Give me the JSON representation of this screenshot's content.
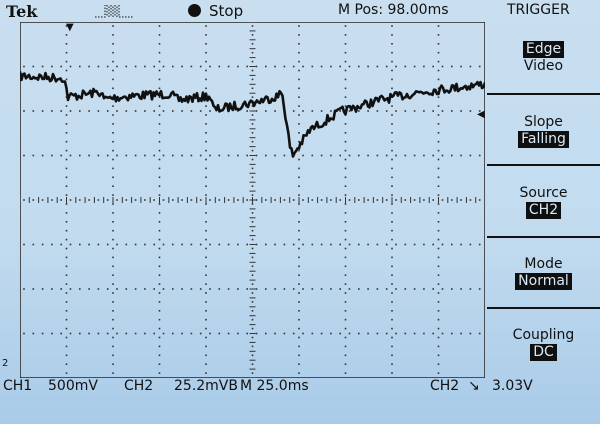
{
  "header": {
    "brand": "Tek",
    "run_state": "Stop",
    "position": "M Pos: 98.00ms",
    "trigger_title": "TRIGGER"
  },
  "menu": {
    "items": [
      {
        "lines": [
          "Edge",
          "Video"
        ],
        "highlight": [
          true,
          false
        ]
      },
      {
        "lines": [
          "Slope",
          "Falling"
        ],
        "highlight": [
          false,
          true
        ]
      },
      {
        "lines": [
          "Source",
          "CH2"
        ],
        "highlight": [
          false,
          true
        ]
      },
      {
        "lines": [
          "Mode",
          "Normal"
        ],
        "highlight": [
          false,
          true
        ]
      },
      {
        "lines": [
          "Coupling",
          "DC"
        ],
        "highlight": [
          false,
          true
        ]
      }
    ]
  },
  "status": {
    "ch1": "CH1",
    "ch1_scale": "500mV",
    "ch2": "CH2",
    "ch2_scale": "25.2mVB",
    "timebase": "M 25.0ms",
    "trig_source": "CH2",
    "trig_slope_symbol": "↘",
    "trig_level": "3.03V"
  },
  "markers": {
    "trigger_position": "▼",
    "trigger_level": "◀",
    "channel_ref": "2"
  },
  "colors": {
    "screen": "#c2dbef",
    "trace": "#111111",
    "highlight_bg": "#0f0f0f"
  }
}
